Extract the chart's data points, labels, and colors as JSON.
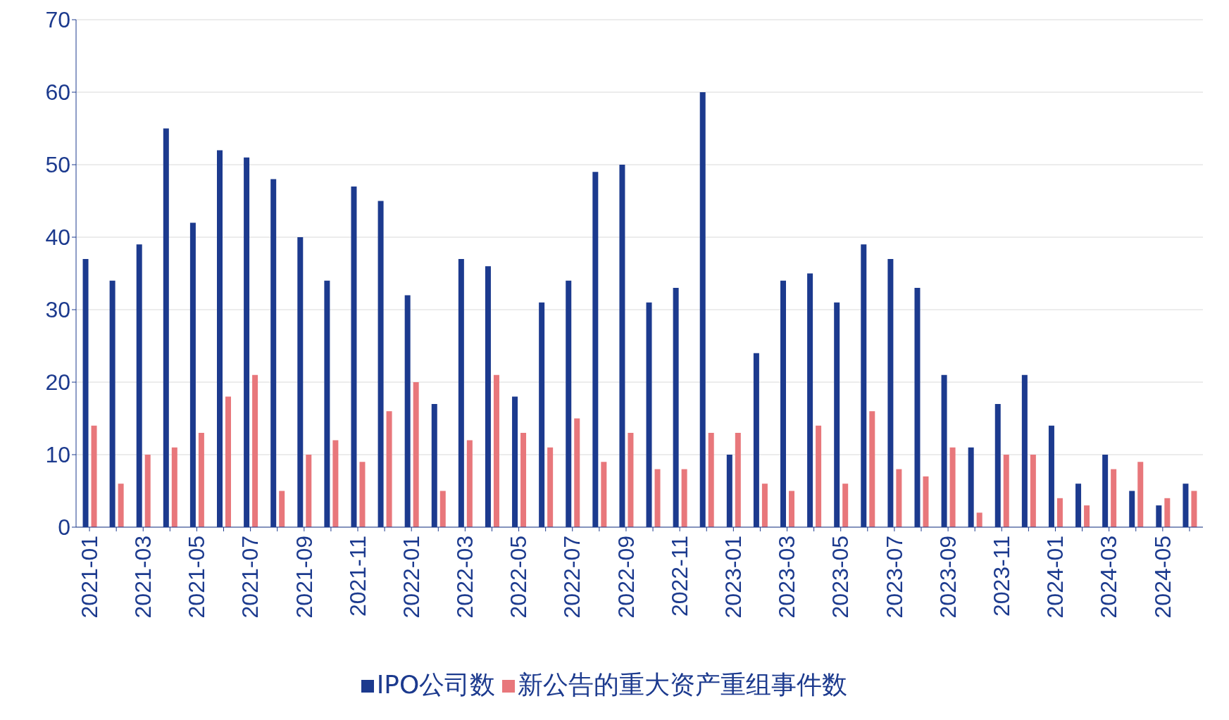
{
  "chart_data": {
    "type": "bar",
    "categories": [
      "2021-01",
      null,
      "2021-03",
      null,
      "2021-05",
      null,
      "2021-07",
      null,
      "2021-09",
      null,
      "2021-11",
      null,
      "2022-01",
      null,
      "2022-03",
      null,
      "2022-05",
      null,
      "2022-07",
      null,
      "2022-09",
      null,
      "2022-11",
      null,
      "2023-01",
      null,
      "2023-03",
      null,
      "2023-05",
      null,
      "2023-07",
      null,
      "2023-09",
      null,
      "2023-11",
      null,
      "2024-01",
      null,
      "2024-03",
      null,
      "2024-05",
      null
    ],
    "series": [
      {
        "name": "IPO公司数",
        "color": "#1c3a8e",
        "values": [
          37,
          34,
          39,
          55,
          42,
          52,
          51,
          48,
          40,
          34,
          47,
          45,
          32,
          17,
          37,
          36,
          18,
          31,
          34,
          49,
          50,
          31,
          33,
          60,
          10,
          24,
          34,
          35,
          31,
          39,
          37,
          33,
          21,
          11,
          17,
          21,
          14,
          6,
          10,
          5,
          3,
          6
        ]
      },
      {
        "name": "新公告的重大资产重组事件数",
        "color": "#e8777b",
        "values": [
          14,
          6,
          10,
          11,
          13,
          18,
          21,
          5,
          10,
          12,
          9,
          16,
          20,
          5,
          12,
          21,
          13,
          11,
          15,
          9,
          13,
          8,
          8,
          13,
          13,
          6,
          5,
          14,
          6,
          16,
          8,
          7,
          11,
          2,
          10,
          10,
          4,
          3,
          8,
          9,
          4,
          5
        ]
      }
    ],
    "ylim": [
      0,
      70
    ],
    "yticks": [
      0,
      10,
      20,
      30,
      40,
      50,
      60,
      70
    ],
    "grid": "y",
    "legend": "bottom"
  }
}
